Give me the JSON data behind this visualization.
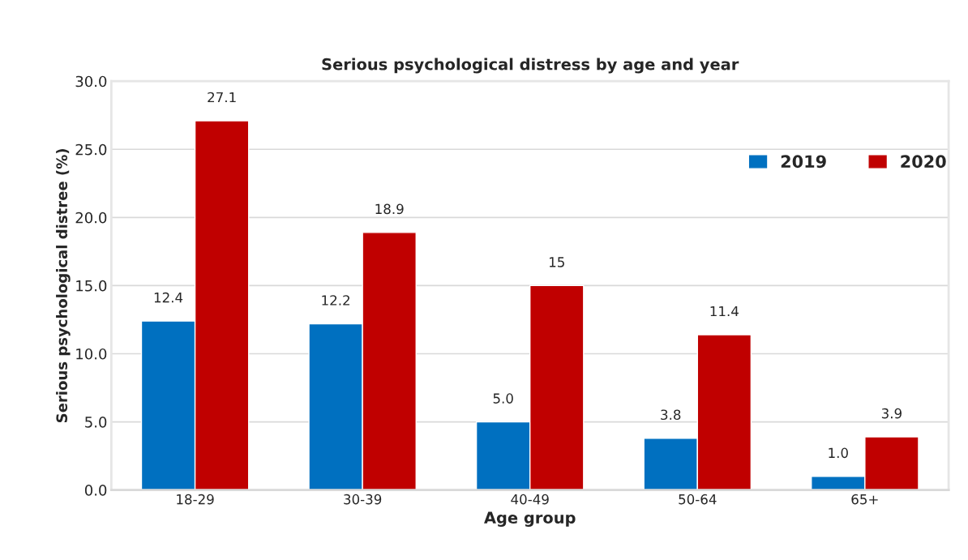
{
  "chart_data": {
    "type": "bar",
    "title": "Serious psychological distress by age and year",
    "xlabel": "Age group",
    "ylabel": "Serious psychological distree (%)",
    "categories": [
      "18-29",
      "30-39",
      "40-49",
      "50-64",
      "65+"
    ],
    "series": [
      {
        "name": "2019",
        "color": "#0070c0",
        "values": [
          12.4,
          12.2,
          5.0,
          3.8,
          1.0
        ],
        "value_labels": [
          "12.4",
          "12.2",
          "5.0",
          "3.8",
          "1.0"
        ]
      },
      {
        "name": "2020",
        "color": "#c00000",
        "values": [
          27.1,
          18.9,
          15,
          11.4,
          3.9
        ],
        "value_labels": [
          "27.1",
          "18.9",
          "15",
          "11.4",
          "3.9"
        ]
      }
    ],
    "ylim": [
      0,
      30
    ],
    "yticks": [
      {
        "value": 0,
        "label": "0.0"
      },
      {
        "value": 5,
        "label": "5.0"
      },
      {
        "value": 10,
        "label": "10.0"
      },
      {
        "value": 15,
        "label": "15.0"
      },
      {
        "value": 20,
        "label": "20.0"
      },
      {
        "value": 25,
        "label": "25.0"
      },
      {
        "value": 30,
        "label": "30.0"
      }
    ],
    "grid": "y",
    "legend": "top right"
  }
}
